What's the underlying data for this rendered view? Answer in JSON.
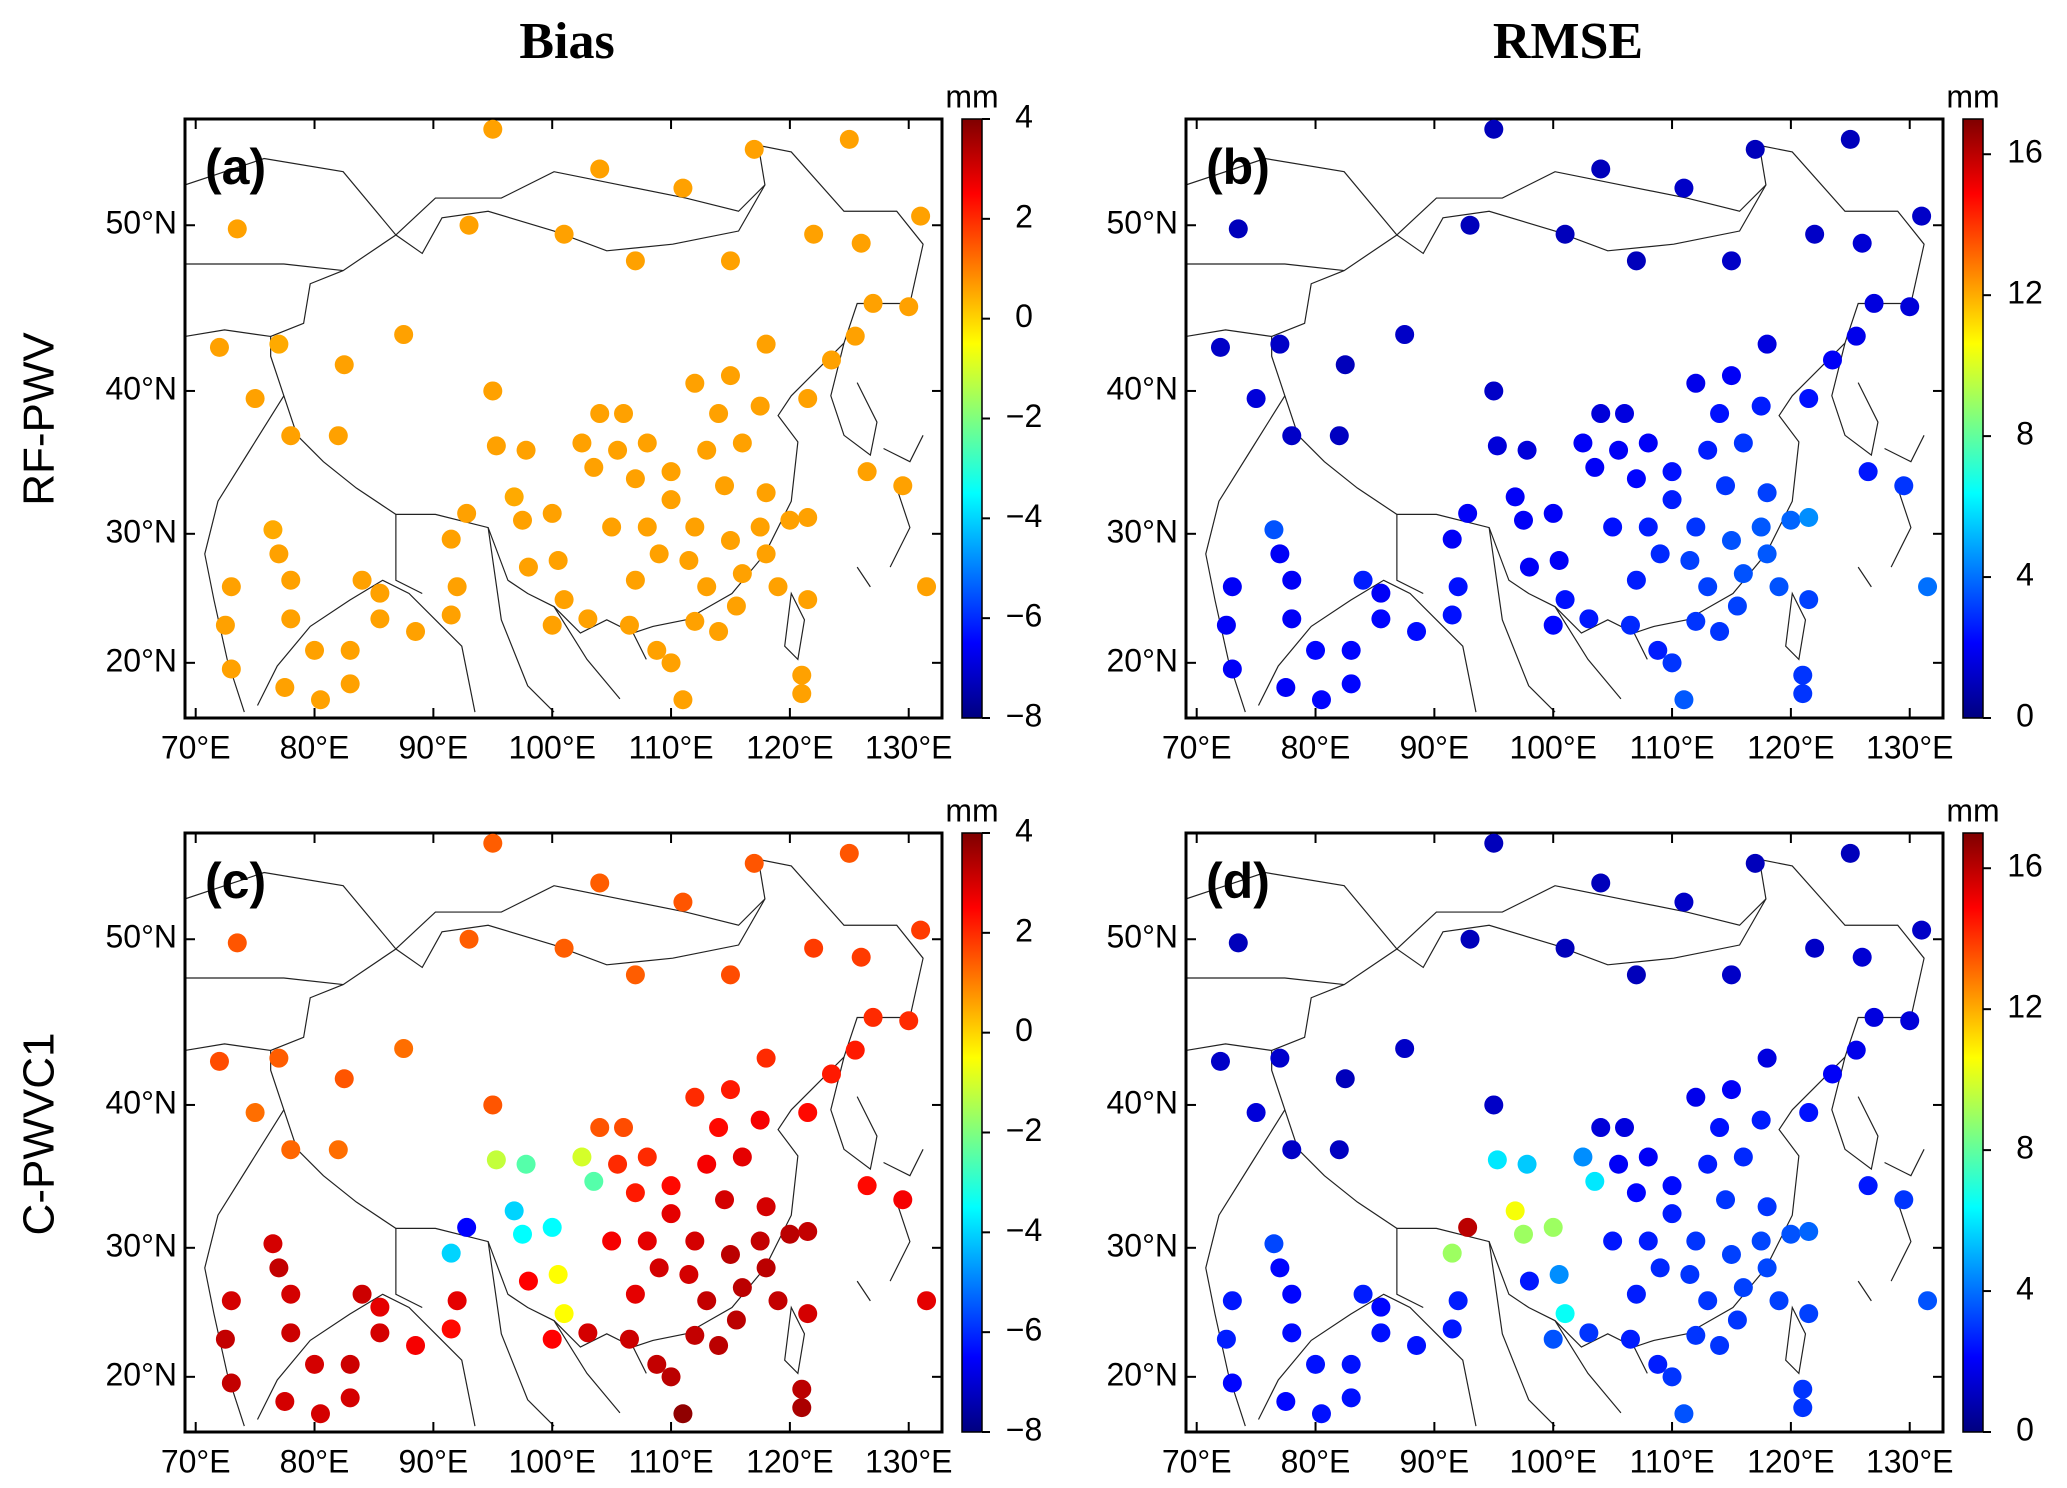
{
  "column_titles": [
    "Bias",
    "RMSE"
  ],
  "row_labels": [
    "RF-PWV",
    "C-PWVC1"
  ],
  "colormap": [
    "#00007f",
    "#0000ff",
    "#007fff",
    "#00ffff",
    "#7fff7f",
    "#ffff00",
    "#ff7f00",
    "#ff0000",
    "#7f0000"
  ],
  "stations": {
    "lon": [
      73.5,
      72,
      75,
      77,
      82.5,
      87.5,
      78,
      82,
      76.5,
      77,
      73,
      72.5,
      73,
      78,
      78,
      80,
      77.5,
      80.5,
      83,
      83,
      85.5,
      84,
      85.5,
      88.5,
      91.5,
      92,
      91.5,
      92.8,
      95,
      95.3,
      97.8,
      96.8,
      97.5,
      100,
      98,
      100.5,
      101,
      100,
      103,
      102.5,
      103.5,
      104,
      106,
      105.5,
      108,
      107,
      110,
      105,
      108,
      110,
      112,
      111.5,
      113,
      109,
      107,
      106.5,
      108.8,
      112,
      114,
      115.5,
      116,
      115,
      117.5,
      118,
      119,
      120,
      121.5,
      118,
      114.5,
      113,
      116,
      117.5,
      114,
      112,
      115,
      118,
      121.5,
      123.5,
      125.5,
      127,
      130,
      126,
      131,
      122,
      115,
      107,
      101,
      93,
      95,
      104,
      111,
      117,
      125,
      121,
      121,
      121.5,
      129.5,
      126.5,
      131.5,
      110,
      111
    ],
    "lat": [
      49.8,
      42.8,
      39.5,
      43,
      41.7,
      43.6,
      37,
      37,
      30.3,
      28.5,
      26,
      23,
      19.5,
      26.5,
      23.5,
      21,
      18,
      17,
      21,
      18.3,
      25.5,
      26.5,
      23.5,
      22.5,
      23.8,
      26,
      29.6,
      31.5,
      40,
      36.3,
      36,
      32.7,
      31,
      31.5,
      27.5,
      28,
      25,
      23,
      23.5,
      36.5,
      34.8,
      38.5,
      38.5,
      36,
      36.5,
      34,
      34.5,
      30.5,
      30.5,
      32.5,
      30.5,
      28,
      26,
      28.5,
      26.5,
      23,
      21,
      23.3,
      22.5,
      24.5,
      27,
      29.5,
      30.5,
      28.5,
      26,
      31,
      31.2,
      33,
      33.5,
      36,
      36.5,
      39,
      38.5,
      40.5,
      41,
      43,
      39.5,
      42,
      43.5,
      45.5,
      45.3,
      49,
      50.5,
      49.5,
      48,
      48,
      49.5,
      50,
      55,
      53,
      52,
      54,
      54.5,
      17.5,
      19,
      25,
      33.5,
      34.5,
      26,
      20,
      17
    ]
  },
  "chart_data": [
    {
      "type": "map",
      "panel_label": "(a)",
      "xlim": [
        69.1,
        132.8
      ],
      "ylim": [
        15.5,
        55.5
      ],
      "xticks": [
        {
          "value": 70,
          "label": "70°E"
        },
        {
          "value": 80,
          "label": "80°E"
        },
        {
          "value": 90,
          "label": "90°E"
        },
        {
          "value": 100,
          "label": "100°E"
        },
        {
          "value": 110,
          "label": "110°E"
        },
        {
          "value": 120,
          "label": "120°E"
        },
        {
          "value": 130,
          "label": "130°E"
        }
      ],
      "yticks": [
        {
          "value": 20,
          "label": "20°N"
        },
        {
          "value": 30,
          "label": "30°N"
        },
        {
          "value": 40,
          "label": "40°N"
        },
        {
          "value": 50,
          "label": "50°N"
        }
      ],
      "colorbar": {
        "label": "mm",
        "lim": [
          -8,
          4
        ],
        "ticks": [
          {
            "value": -8,
            "label": "−8"
          },
          {
            "value": -6,
            "label": "−6"
          },
          {
            "value": -4,
            "label": "−4"
          },
          {
            "value": -2,
            "label": "−2"
          },
          0,
          2,
          4
        ]
      },
      "values": [
        0.6,
        0.6,
        0.6,
        0.5,
        0.6,
        0.6,
        0.6,
        0.6,
        0.5,
        0.6,
        0.6,
        0.6,
        0.6,
        0.6,
        0.6,
        0.6,
        0.6,
        0.6,
        0.6,
        0.6,
        0.6,
        0.6,
        0.6,
        0.6,
        0.6,
        0.6,
        0.6,
        0.6,
        0.6,
        0.6,
        0.6,
        0.5,
        0.6,
        0.6,
        0.6,
        0.6,
        0.6,
        0.6,
        0.6,
        0.6,
        0.6,
        0.6,
        0.6,
        0.6,
        0.6,
        0.6,
        0.6,
        0.6,
        0.6,
        0.6,
        0.6,
        0.6,
        0.6,
        0.6,
        0.6,
        0.6,
        0.6,
        0.6,
        0.6,
        0.6,
        0.6,
        0.6,
        0.6,
        0.6,
        0.6,
        0.6,
        0.6,
        0.6,
        0.6,
        0.6,
        0.6,
        0.6,
        0.6,
        0.6,
        0.6,
        0.6,
        0.6,
        0.6,
        0.6,
        0.6,
        0.6,
        0.6,
        0.6,
        0.6,
        0.6,
        0.6,
        0.6,
        0.6,
        0.6,
        0.6,
        0.6,
        0.6,
        0.6,
        0.6,
        0.6,
        0.6,
        0.6,
        0.6,
        0.6,
        0.6,
        0.6
      ]
    },
    {
      "type": "map",
      "panel_label": "(b)",
      "xlim": [
        69.1,
        132.8
      ],
      "ylim": [
        15.5,
        55.5
      ],
      "xticks": [
        {
          "value": 70,
          "label": "70°E"
        },
        {
          "value": 80,
          "label": "80°E"
        },
        {
          "value": 90,
          "label": "90°E"
        },
        {
          "value": 100,
          "label": "100°E"
        },
        {
          "value": 110,
          "label": "110°E"
        },
        {
          "value": 120,
          "label": "120°E"
        },
        {
          "value": 130,
          "label": "130°E"
        }
      ],
      "yticks": [
        {
          "value": 20,
          "label": "20°N"
        },
        {
          "value": 30,
          "label": "30°N"
        },
        {
          "value": 40,
          "label": "40°N"
        },
        {
          "value": 50,
          "label": "50°N"
        }
      ],
      "colorbar": {
        "label": "mm",
        "lim": [
          0,
          17
        ],
        "ticks": [
          0,
          4,
          8,
          12,
          16
        ]
      },
      "values": [
        1.0,
        1.2,
        1.5,
        1.2,
        1.0,
        1.2,
        1.2,
        1.1,
        3.5,
        2.0,
        2.0,
        2.0,
        2.0,
        2.0,
        2.0,
        2.2,
        2.0,
        2.2,
        2.2,
        2.2,
        2.0,
        2.6,
        2.2,
        2.3,
        2.4,
        2.4,
        2.0,
        2.0,
        1.2,
        1.5,
        1.5,
        2.0,
        2.0,
        2.0,
        2.0,
        2.0,
        2.4,
        2.2,
        2.5,
        2.0,
        2.0,
        1.5,
        1.6,
        2.0,
        2.0,
        2.2,
        2.4,
        2.4,
        2.6,
        2.6,
        3.0,
        3.2,
        3.2,
        2.8,
        2.6,
        2.8,
        2.6,
        3.0,
        3.0,
        3.2,
        3.5,
        3.5,
        3.6,
        3.6,
        3.5,
        3.8,
        4.5,
        3.2,
        3.0,
        2.6,
        3.0,
        2.6,
        2.4,
        1.8,
        2.0,
        1.6,
        2.4,
        2.0,
        1.8,
        1.6,
        1.5,
        1.4,
        1.2,
        1.2,
        1.2,
        1.0,
        1.0,
        1.0,
        1.0,
        1.0,
        1.2,
        1.0,
        1.0,
        3.0,
        3.0,
        3.2,
        3.0,
        2.5,
        4.0,
        3.0,
        3.6
      ]
    },
    {
      "type": "map",
      "panel_label": "(c)",
      "xlim": [
        69.1,
        132.8
      ],
      "ylim": [
        15.5,
        55.5
      ],
      "xticks": [
        {
          "value": 70,
          "label": "70°E"
        },
        {
          "value": 80,
          "label": "80°E"
        },
        {
          "value": 90,
          "label": "90°E"
        },
        {
          "value": 100,
          "label": "100°E"
        },
        {
          "value": 110,
          "label": "110°E"
        },
        {
          "value": 120,
          "label": "120°E"
        },
        {
          "value": 130,
          "label": "130°E"
        }
      ],
      "yticks": [
        {
          "value": 20,
          "label": "20°N"
        },
        {
          "value": 30,
          "label": "30°N"
        },
        {
          "value": 40,
          "label": "40°N"
        },
        {
          "value": 50,
          "label": "50°N"
        }
      ],
      "colorbar": {
        "label": "mm",
        "lim": [
          -8,
          4
        ],
        "ticks": [
          {
            "value": -8,
            "label": "−8"
          },
          {
            "value": -6,
            "label": "−6"
          },
          {
            "value": -4,
            "label": "−4"
          },
          {
            "value": -2,
            "label": "−2"
          },
          0,
          2,
          4
        ]
      },
      "values": [
        1.5,
        1.6,
        1.2,
        1.4,
        1.5,
        1.2,
        1.3,
        1.2,
        3.0,
        3.2,
        3.0,
        3.2,
        3.2,
        3.0,
        3.1,
        3.0,
        3.0,
        3.0,
        3.1,
        3.0,
        2.8,
        3.1,
        3.0,
        2.6,
        2.4,
        2.8,
        -4.0,
        -6.5,
        1.5,
        -1.2,
        -2.5,
        -4.0,
        -3.5,
        -3.5,
        2.5,
        -0.5,
        -0.5,
        2.5,
        3.0,
        -1.0,
        -2.5,
        1.5,
        1.6,
        2.0,
        2.0,
        2.2,
        2.4,
        2.6,
        2.8,
        2.8,
        3.0,
        3.0,
        3.2,
        3.0,
        2.8,
        3.1,
        3.2,
        3.2,
        3.3,
        3.3,
        3.3,
        3.3,
        3.2,
        3.3,
        3.2,
        3.3,
        3.2,
        3.0,
        3.0,
        2.6,
        2.8,
        2.6,
        2.4,
        2.0,
        2.2,
        2.0,
        2.4,
        2.2,
        2.2,
        2.0,
        2.0,
        1.8,
        1.8,
        1.8,
        1.6,
        1.4,
        1.4,
        1.4,
        1.4,
        1.4,
        1.5,
        1.5,
        1.5,
        3.5,
        3.3,
        3.0,
        2.6,
        2.4,
        2.8,
        3.3,
        3.8
      ]
    },
    {
      "type": "map",
      "panel_label": "(d)",
      "xlim": [
        69.1,
        132.8
      ],
      "ylim": [
        15.5,
        55.5
      ],
      "xticks": [
        {
          "value": 70,
          "label": "70°E"
        },
        {
          "value": 80,
          "label": "80°E"
        },
        {
          "value": 90,
          "label": "90°E"
        },
        {
          "value": 100,
          "label": "100°E"
        },
        {
          "value": 110,
          "label": "110°E"
        },
        {
          "value": 120,
          "label": "120°E"
        },
        {
          "value": 130,
          "label": "130°E"
        }
      ],
      "yticks": [
        {
          "value": 20,
          "label": "20°N"
        },
        {
          "value": 30,
          "label": "30°N"
        },
        {
          "value": 40,
          "label": "40°N"
        },
        {
          "value": 50,
          "label": "50°N"
        }
      ],
      "colorbar": {
        "label": "mm",
        "lim": [
          0,
          17
        ],
        "ticks": [
          0,
          4,
          8,
          12,
          16
        ]
      },
      "values": [
        1.0,
        1.2,
        1.5,
        1.3,
        1.0,
        1.2,
        1.2,
        1.1,
        3.3,
        2.2,
        2.5,
        2.6,
        2.2,
        2.2,
        2.3,
        2.4,
        2.2,
        2.4,
        2.4,
        2.4,
        2.2,
        2.6,
        2.4,
        2.4,
        2.5,
        2.6,
        9.0,
        16.0,
        1.2,
        6.0,
        5.5,
        10.5,
        9.0,
        9.0,
        2.5,
        4.5,
        6.5,
        3.5,
        3.0,
        4.5,
        6.0,
        1.5,
        1.6,
        2.0,
        2.0,
        2.2,
        2.3,
        2.5,
        2.6,
        2.6,
        3.0,
        3.0,
        3.0,
        2.8,
        2.6,
        2.6,
        2.6,
        3.0,
        3.0,
        3.0,
        3.2,
        3.2,
        3.3,
        3.3,
        3.2,
        3.5,
        3.8,
        3.0,
        3.0,
        2.6,
        2.8,
        2.6,
        2.4,
        1.8,
        2.0,
        1.6,
        2.4,
        2.0,
        1.8,
        1.6,
        1.5,
        1.4,
        1.2,
        1.2,
        1.2,
        1.0,
        1.0,
        1.0,
        1.0,
        1.0,
        1.2,
        1.0,
        1.0,
        3.0,
        3.0,
        3.2,
        3.0,
        2.5,
        3.5,
        3.0,
        3.5
      ]
    }
  ]
}
